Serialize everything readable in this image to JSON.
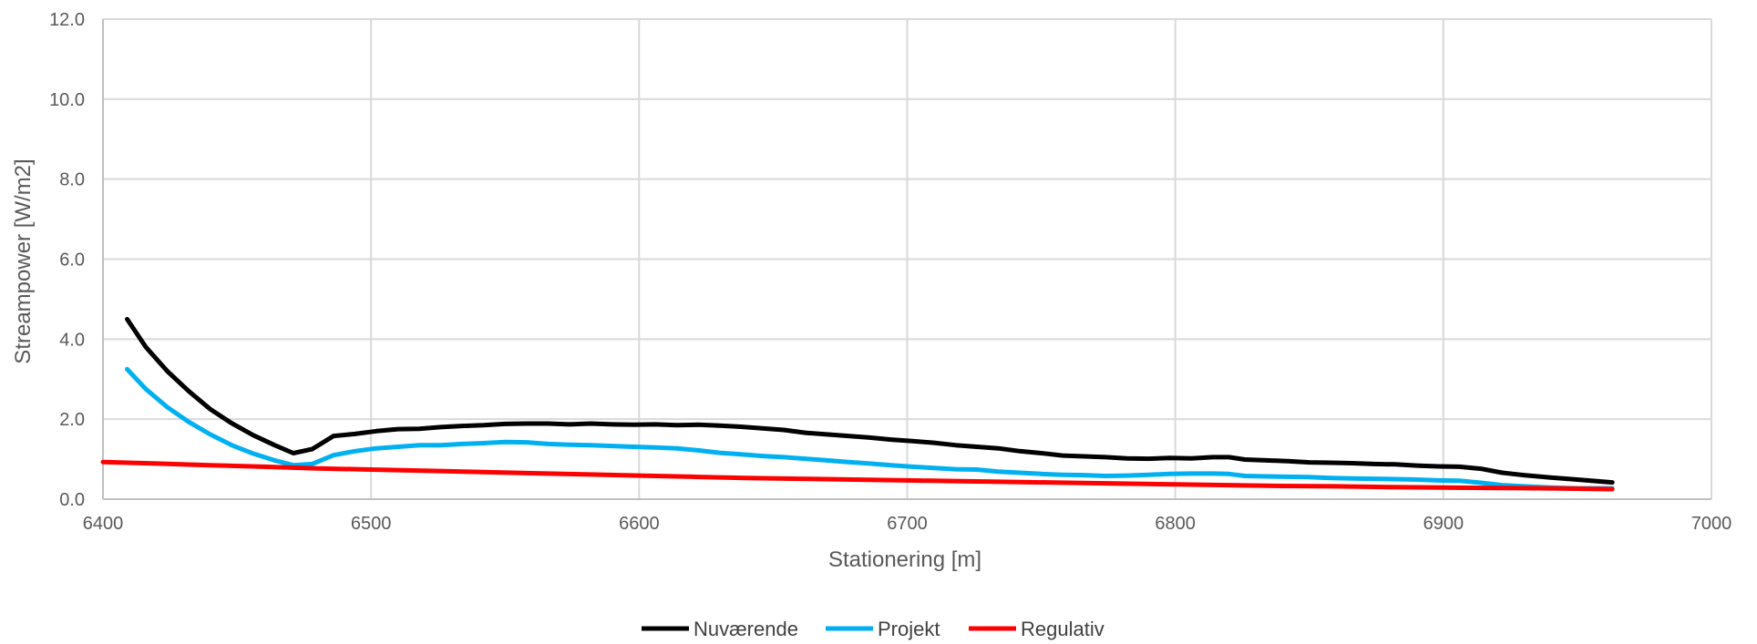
{
  "chart_data": {
    "type": "line",
    "title": "",
    "xlabel": "Stationering [m]",
    "ylabel": "Streampower [W/m2]",
    "xlim": [
      6400,
      7000
    ],
    "ylim": [
      0,
      12
    ],
    "x_ticks": [
      "6400",
      "6500",
      "6600",
      "6700",
      "6800",
      "6900",
      "7000"
    ],
    "y_ticks": [
      "0.0",
      "2.0",
      "4.0",
      "6.0",
      "8.0",
      "10.0",
      "12.0"
    ],
    "grid": true,
    "legend_position": "bottom",
    "series": [
      {
        "name": "Nuværende",
        "color": "#000000",
        "points": [
          [
            6409,
            4.5
          ],
          [
            6416,
            3.8
          ],
          [
            6424,
            3.2
          ],
          [
            6432,
            2.7
          ],
          [
            6440,
            2.25
          ],
          [
            6448,
            1.9
          ],
          [
            6456,
            1.6
          ],
          [
            6464,
            1.35
          ],
          [
            6471,
            1.15
          ],
          [
            6478,
            1.25
          ],
          [
            6486,
            1.58
          ],
          [
            6494,
            1.63
          ],
          [
            6502,
            1.7
          ],
          [
            6510,
            1.75
          ],
          [
            6518,
            1.76
          ],
          [
            6526,
            1.8
          ],
          [
            6534,
            1.83
          ],
          [
            6542,
            1.85
          ],
          [
            6550,
            1.88
          ],
          [
            6558,
            1.89
          ],
          [
            6566,
            1.89
          ],
          [
            6574,
            1.87
          ],
          [
            6582,
            1.89
          ],
          [
            6590,
            1.87
          ],
          [
            6598,
            1.86
          ],
          [
            6606,
            1.87
          ],
          [
            6614,
            1.85
          ],
          [
            6622,
            1.86
          ],
          [
            6630,
            1.84
          ],
          [
            6638,
            1.81
          ],
          [
            6646,
            1.77
          ],
          [
            6654,
            1.73
          ],
          [
            6662,
            1.66
          ],
          [
            6670,
            1.62
          ],
          [
            6678,
            1.58
          ],
          [
            6686,
            1.54
          ],
          [
            6694,
            1.49
          ],
          [
            6702,
            1.45
          ],
          [
            6710,
            1.41
          ],
          [
            6718,
            1.35
          ],
          [
            6726,
            1.31
          ],
          [
            6734,
            1.27
          ],
          [
            6742,
            1.2
          ],
          [
            6750,
            1.15
          ],
          [
            6758,
            1.09
          ],
          [
            6766,
            1.07
          ],
          [
            6774,
            1.05
          ],
          [
            6782,
            1.02
          ],
          [
            6790,
            1.01
          ],
          [
            6798,
            1.03
          ],
          [
            6806,
            1.02
          ],
          [
            6814,
            1.05
          ],
          [
            6820,
            1.05
          ],
          [
            6826,
            0.99
          ],
          [
            6834,
            0.97
          ],
          [
            6842,
            0.95
          ],
          [
            6850,
            0.92
          ],
          [
            6858,
            0.91
          ],
          [
            6866,
            0.9
          ],
          [
            6874,
            0.88
          ],
          [
            6882,
            0.87
          ],
          [
            6890,
            0.84
          ],
          [
            6898,
            0.82
          ],
          [
            6906,
            0.81
          ],
          [
            6914,
            0.76
          ],
          [
            6922,
            0.66
          ],
          [
            6930,
            0.6
          ],
          [
            6940,
            0.54
          ],
          [
            6950,
            0.49
          ],
          [
            6963,
            0.42
          ]
        ]
      },
      {
        "name": "Projekt",
        "color": "#00B0F0",
        "points": [
          [
            6409,
            3.25
          ],
          [
            6416,
            2.75
          ],
          [
            6424,
            2.3
          ],
          [
            6432,
            1.93
          ],
          [
            6440,
            1.62
          ],
          [
            6448,
            1.35
          ],
          [
            6456,
            1.14
          ],
          [
            6464,
            0.97
          ],
          [
            6471,
            0.85
          ],
          [
            6478,
            0.88
          ],
          [
            6486,
            1.1
          ],
          [
            6494,
            1.2
          ],
          [
            6502,
            1.27
          ],
          [
            6510,
            1.31
          ],
          [
            6518,
            1.35
          ],
          [
            6526,
            1.35
          ],
          [
            6534,
            1.38
          ],
          [
            6542,
            1.4
          ],
          [
            6550,
            1.43
          ],
          [
            6558,
            1.42
          ],
          [
            6566,
            1.38
          ],
          [
            6574,
            1.36
          ],
          [
            6582,
            1.35
          ],
          [
            6590,
            1.33
          ],
          [
            6598,
            1.31
          ],
          [
            6606,
            1.29
          ],
          [
            6614,
            1.27
          ],
          [
            6622,
            1.22
          ],
          [
            6630,
            1.16
          ],
          [
            6638,
            1.12
          ],
          [
            6646,
            1.08
          ],
          [
            6654,
            1.05
          ],
          [
            6662,
            1.01
          ],
          [
            6670,
            0.97
          ],
          [
            6678,
            0.93
          ],
          [
            6686,
            0.89
          ],
          [
            6694,
            0.85
          ],
          [
            6702,
            0.81
          ],
          [
            6710,
            0.78
          ],
          [
            6718,
            0.75
          ],
          [
            6726,
            0.74
          ],
          [
            6734,
            0.69
          ],
          [
            6742,
            0.66
          ],
          [
            6750,
            0.63
          ],
          [
            6758,
            0.61
          ],
          [
            6766,
            0.6
          ],
          [
            6774,
            0.58
          ],
          [
            6782,
            0.59
          ],
          [
            6790,
            0.61
          ],
          [
            6798,
            0.63
          ],
          [
            6806,
            0.64
          ],
          [
            6814,
            0.64
          ],
          [
            6820,
            0.63
          ],
          [
            6826,
            0.58
          ],
          [
            6834,
            0.57
          ],
          [
            6842,
            0.56
          ],
          [
            6850,
            0.55
          ],
          [
            6858,
            0.53
          ],
          [
            6866,
            0.52
          ],
          [
            6874,
            0.51
          ],
          [
            6882,
            0.5
          ],
          [
            6890,
            0.49
          ],
          [
            6898,
            0.47
          ],
          [
            6906,
            0.46
          ],
          [
            6914,
            0.41
          ],
          [
            6922,
            0.35
          ],
          [
            6930,
            0.32
          ],
          [
            6940,
            0.29
          ],
          [
            6950,
            0.27
          ],
          [
            6963,
            0.27
          ]
        ]
      },
      {
        "name": "Regulativ",
        "color": "#FF0000",
        "points": [
          [
            6400,
            0.93
          ],
          [
            6420,
            0.89
          ],
          [
            6440,
            0.85
          ],
          [
            6460,
            0.81
          ],
          [
            6480,
            0.77
          ],
          [
            6500,
            0.74
          ],
          [
            6520,
            0.71
          ],
          [
            6540,
            0.68
          ],
          [
            6560,
            0.65
          ],
          [
            6580,
            0.62
          ],
          [
            6600,
            0.59
          ],
          [
            6620,
            0.56
          ],
          [
            6640,
            0.53
          ],
          [
            6660,
            0.51
          ],
          [
            6680,
            0.49
          ],
          [
            6700,
            0.47
          ],
          [
            6720,
            0.45
          ],
          [
            6740,
            0.43
          ],
          [
            6760,
            0.41
          ],
          [
            6780,
            0.39
          ],
          [
            6800,
            0.37
          ],
          [
            6820,
            0.35
          ],
          [
            6840,
            0.33
          ],
          [
            6860,
            0.32
          ],
          [
            6880,
            0.3
          ],
          [
            6900,
            0.29
          ],
          [
            6920,
            0.28
          ],
          [
            6940,
            0.27
          ],
          [
            6963,
            0.25
          ]
        ]
      }
    ]
  }
}
